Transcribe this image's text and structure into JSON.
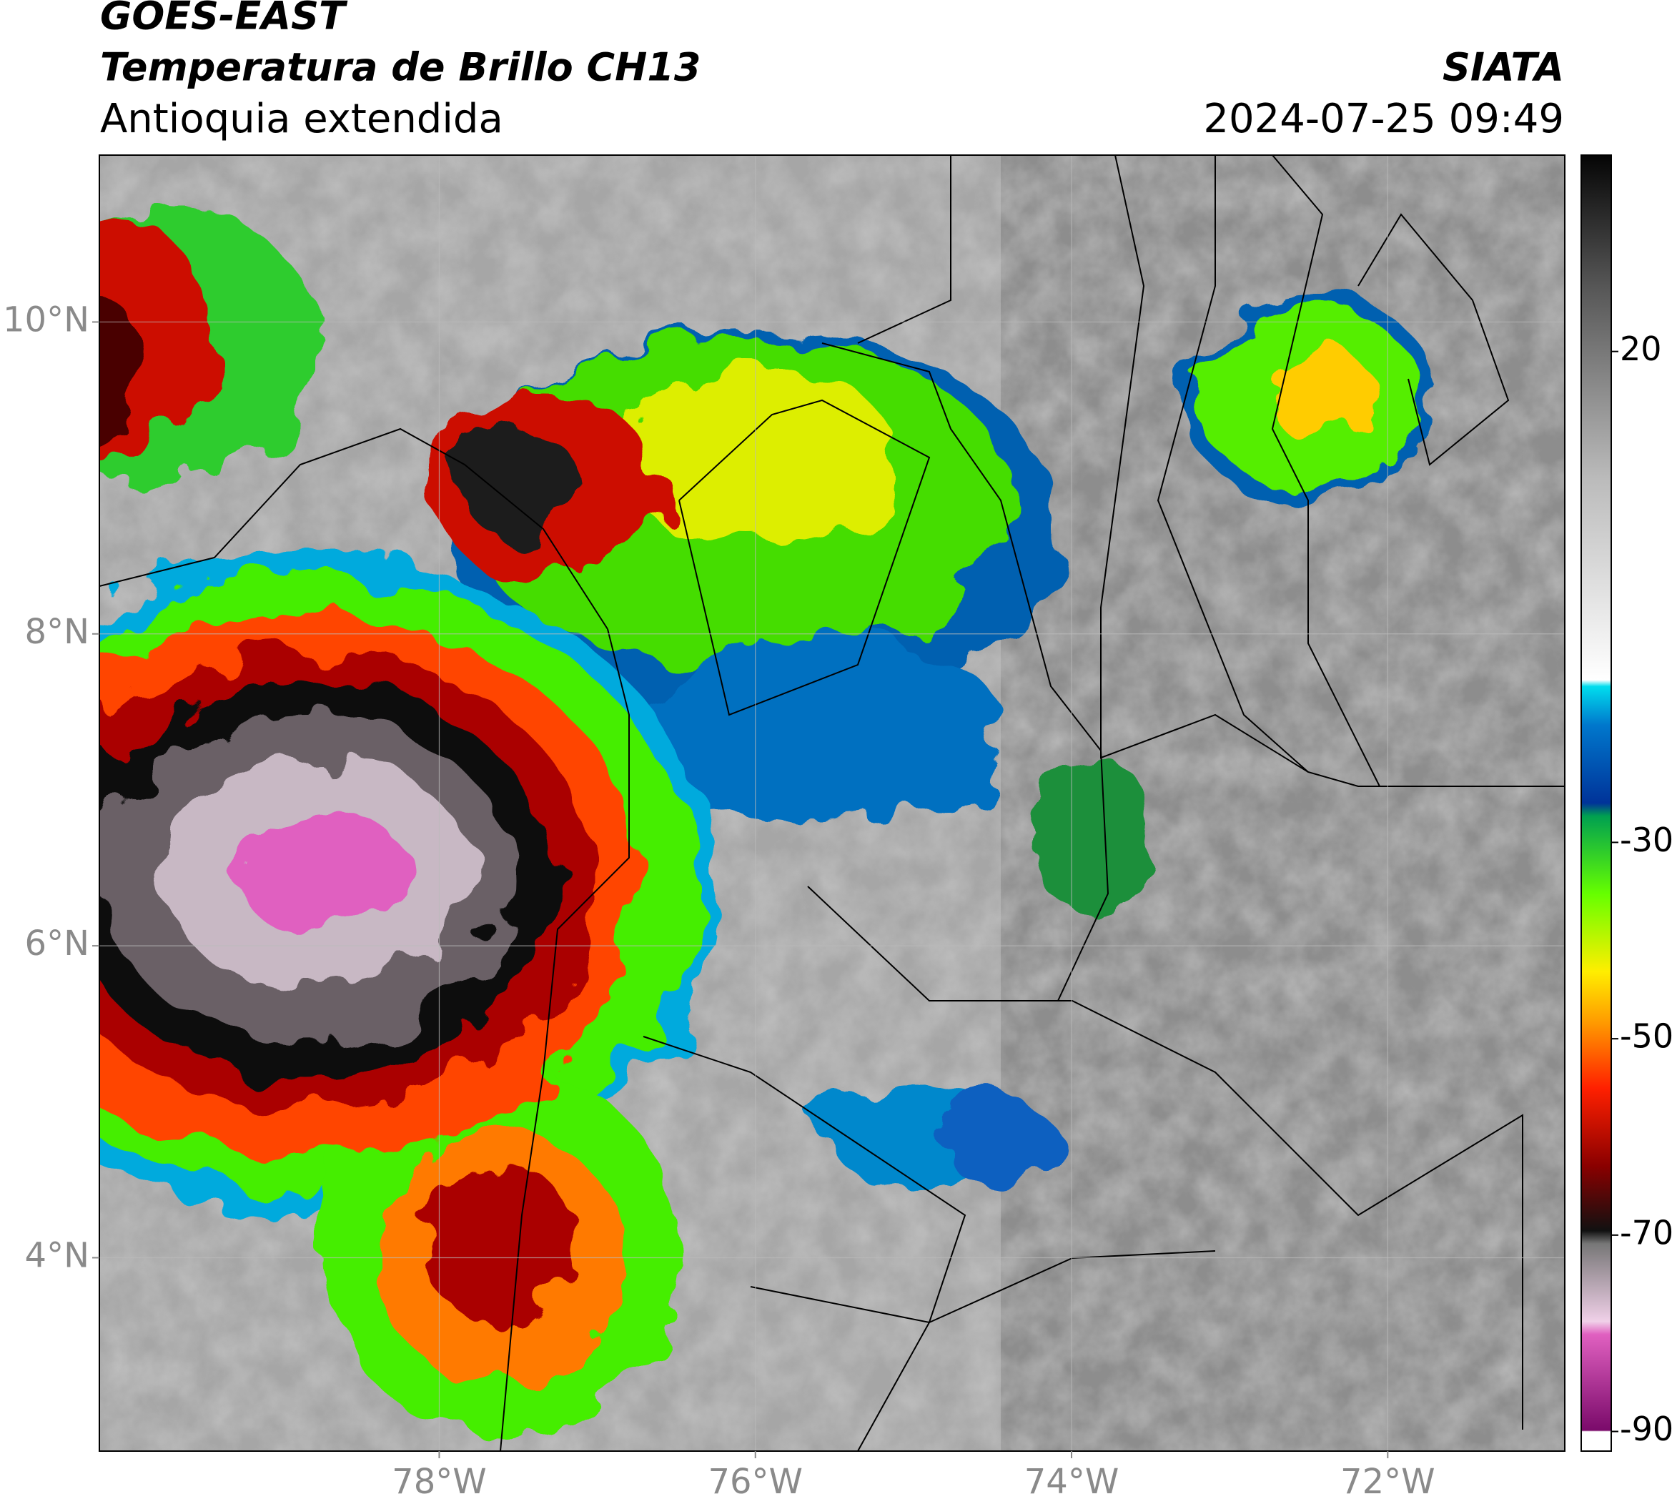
{
  "header": {
    "title": "GOES-EAST",
    "subtitle": "Temperatura de Brillo CH13",
    "region": "Antioquia extendida",
    "source": "SIATA",
    "datetime": "2024-07-25 09:49"
  },
  "map": {
    "xlim": [
      -80.15,
      -70.88
    ],
    "ylim": [
      2.76,
      11.07
    ],
    "lat_ticks": [
      {
        "value": 10,
        "label": "10°N"
      },
      {
        "value": 8,
        "label": "8°N"
      },
      {
        "value": 6,
        "label": "6°N"
      },
      {
        "value": 4,
        "label": "4°N"
      }
    ],
    "lon_ticks": [
      {
        "value": -78,
        "label": "78°W"
      },
      {
        "value": -76,
        "label": "76°W"
      },
      {
        "value": -74,
        "label": "74°W"
      },
      {
        "value": -72,
        "label": "72°W"
      }
    ]
  },
  "colorbar": {
    "lim": [
      -92,
      40
    ],
    "ticks": [
      20,
      -30,
      -50,
      -70,
      -90
    ]
  }
}
